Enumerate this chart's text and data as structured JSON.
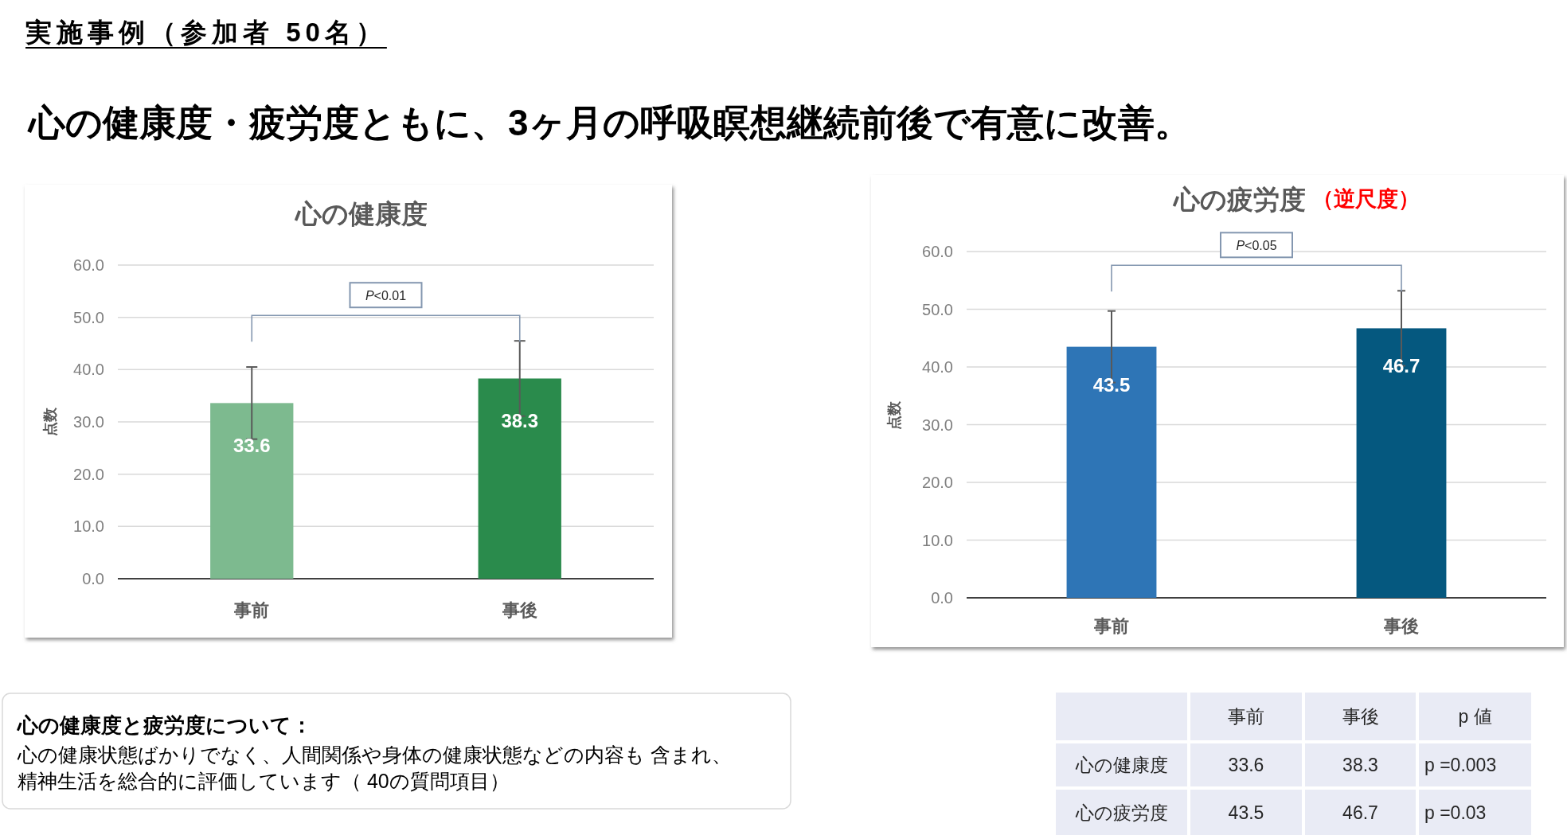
{
  "chart_data": [
    {
      "type": "other",
      "title": "実施事例（参加者 50名）",
      "subtitle": "心の健康度・疲労度ともに、3ヶ月の呼吸瞑想継続前後で有意に改善。"
    },
    {
      "type": "bar",
      "title": "心の健康度",
      "ylabel": "点数",
      "categories": [
        "事前",
        "事後"
      ],
      "values": [
        33.6,
        38.3
      ],
      "colors": [
        "#7dba8f",
        "#2a8b4c"
      ],
      "errors": [
        6.9,
        7.2
      ],
      "ylim": [
        0,
        60
      ],
      "yticks": [
        {
          "value": 0,
          "label": "0.0"
        },
        {
          "value": 10,
          "label": "10.0"
        },
        {
          "value": 20,
          "label": "20.0"
        },
        {
          "value": 30,
          "label": "30.0"
        },
        {
          "value": 40,
          "label": "40.0"
        },
        {
          "value": 50,
          "label": "50.0"
        },
        {
          "value": 60,
          "label": "60.0"
        }
      ],
      "grid": "y",
      "data_labels": true,
      "annotations": [
        "P<0.01"
      ]
    },
    {
      "type": "bar",
      "title": "心の疲労度",
      "subtitle": "（逆尺度）",
      "ylabel": "点数",
      "categories": [
        "事前",
        "事後"
      ],
      "values": [
        43.5,
        46.7
      ],
      "colors": [
        "#2e75b6",
        "#05587f"
      ],
      "errors": [
        6.2,
        6.5
      ],
      "ylim": [
        0,
        60
      ],
      "yticks": [
        {
          "value": 0,
          "label": "0.0"
        },
        {
          "value": 10,
          "label": "10.0"
        },
        {
          "value": 20,
          "label": "20.0"
        },
        {
          "value": 30,
          "label": "30.0"
        },
        {
          "value": 40,
          "label": "40.0"
        },
        {
          "value": 50,
          "label": "50.0"
        },
        {
          "value": 60,
          "label": "60.0"
        }
      ],
      "grid": "y",
      "data_labels": true,
      "annotations": [
        "P<0.05"
      ]
    },
    {
      "type": "other",
      "title": "心の健康度と疲労度について：",
      "annotations": [
        "心の健康状態ばかりでなく、人間関係や身体の健康状態などの内容も 含まれ、",
        "精神生活を総合的に評価しています（ 40の質問項目）"
      ]
    },
    {
      "type": "other",
      "categories": [
        "事前",
        "事後",
        "p 値"
      ],
      "y_categories": [
        "心の健康度",
        "心の疲労度"
      ],
      "cell_labels": [
        [
          "33.6",
          "38.3",
          "p =0.003"
        ],
        [
          "43.5",
          "46.7",
          "p =0.03"
        ]
      ]
    }
  ]
}
